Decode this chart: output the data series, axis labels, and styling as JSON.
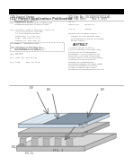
{
  "bg_color": "#ffffff",
  "black": "#000000",
  "text_color": "#444444",
  "dark_gray": "#555555",
  "mid_gray": "#999999",
  "light_gray": "#cccccc",
  "plate_gray": "#c8c8c8",
  "plate_blue": "#d4dde8",
  "plate_dark": "#b0b0b0",
  "pillar_gray": "#a8a8a8",
  "substrate_gray": "#d0d0d0",
  "active_gray": "#8a9aaa"
}
